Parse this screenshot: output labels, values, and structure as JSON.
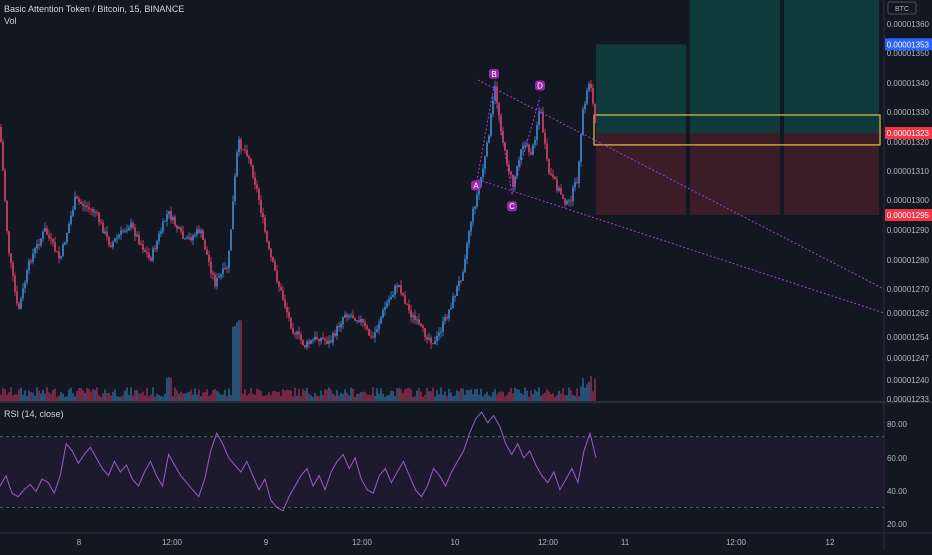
{
  "header": {
    "symbol_line": "Basic Attention Token / Bitcoin, 15, BINANCE",
    "vol_label": "Vol",
    "rsi_label": "RSI (14, close)"
  },
  "chart_data": [
    {
      "type": "candlestick",
      "title": "Basic Attention Token / Bitcoin, 15, BINANCE",
      "currency_badge": "BTC",
      "x_ticks": [
        "8",
        "12:00",
        "9",
        "12:00",
        "10",
        "12:00",
        "11",
        "12:00",
        "12"
      ],
      "y_ticks": [
        "0.00001360",
        "0.00001350",
        "0.00001340",
        "0.00001330",
        "0.00001320",
        "0.00001310",
        "0.00001300",
        "0.00001290",
        "0.00001280",
        "0.00001270",
        "0.00001262",
        "0.00001254",
        "0.00001247",
        "0.00001240",
        "0.00001233"
      ],
      "ylim": [
        1.23e-05,
        1.36e-05
      ],
      "price_labels": [
        {
          "value": 1.353e-05,
          "text": "0.00001353",
          "color": "#2962ff"
        },
        {
          "value": 1.323e-05,
          "text": "0.00001323",
          "color": "#f23645"
        },
        {
          "value": 1.295e-05,
          "text": "0.00001295",
          "color": "#f23645"
        }
      ],
      "candle_path": [
        [
          0,
          1.325e-05
        ],
        [
          8,
          1.285e-05
        ],
        [
          18,
          1.262e-05
        ],
        [
          30,
          1.28e-05
        ],
        [
          45,
          1.29e-05
        ],
        [
          60,
          1.28e-05
        ],
        [
          75,
          1.3e-05
        ],
        [
          95,
          1.296e-05
        ],
        [
          110,
          1.285e-05
        ],
        [
          130,
          1.292e-05
        ],
        [
          150,
          1.28e-05
        ],
        [
          168,
          1.296e-05
        ],
        [
          185,
          1.286e-05
        ],
        [
          200,
          1.29e-05
        ],
        [
          215,
          1.272e-05
        ],
        [
          228,
          1.278e-05
        ],
        [
          238,
          1.32e-05
        ],
        [
          248,
          1.316e-05
        ],
        [
          258,
          1.302e-05
        ],
        [
          268,
          1.284e-05
        ],
        [
          280,
          1.27e-05
        ],
        [
          292,
          1.257e-05
        ],
        [
          305,
          1.251e-05
        ],
        [
          318,
          1.254e-05
        ],
        [
          330,
          1.252e-05
        ],
        [
          345,
          1.262e-05
        ],
        [
          360,
          1.26e-05
        ],
        [
          372,
          1.253e-05
        ],
        [
          385,
          1.264e-05
        ],
        [
          398,
          1.272e-05
        ],
        [
          410,
          1.262e-05
        ],
        [
          422,
          1.256e-05
        ],
        [
          435,
          1.252e-05
        ],
        [
          448,
          1.262e-05
        ],
        [
          462,
          1.275e-05
        ],
        [
          470,
          1.292e-05
        ],
        [
          478,
          1.303e-05
        ],
        [
          486,
          1.316e-05
        ],
        [
          495,
          1.338e-05
        ],
        [
          505,
          1.316e-05
        ],
        [
          513,
          1.305e-05
        ],
        [
          522,
          1.32e-05
        ],
        [
          532,
          1.316e-05
        ],
        [
          540,
          1.332e-05
        ],
        [
          548,
          1.31e-05
        ],
        [
          558,
          1.304e-05
        ],
        [
          568,
          1.298e-05
        ],
        [
          578,
          1.308e-05
        ],
        [
          583,
          1.33e-05
        ],
        [
          590,
          1.342e-05
        ],
        [
          596,
          1.323e-05
        ]
      ],
      "pattern": {
        "type": "harmonic",
        "points": [
          {
            "label": "A",
            "x": 476,
            "value": 1.305e-05
          },
          {
            "label": "B",
            "x": 494,
            "value": 1.339e-05
          },
          {
            "label": "C",
            "x": 512,
            "value": 1.302e-05
          },
          {
            "label": "D",
            "x": 540,
            "value": 1.335e-05
          }
        ]
      },
      "trendlines": [
        {
          "x1": 478,
          "value1": 1.341e-05,
          "x2": 884,
          "value2": 1.27e-05
        },
        {
          "x1": 478,
          "value1": 1.307e-05,
          "x2": 884,
          "value2": 1.262e-05
        }
      ],
      "position": {
        "entry": 1.323e-05,
        "target": 1.353e-05,
        "stop": 1.295e-05,
        "entry_box": [
          1.319e-05,
          1.329e-05
        ]
      }
    },
    {
      "type": "line",
      "title": "RSI (14, close)",
      "y_ticks": [
        "80.00",
        "60.00",
        "40.00",
        "20.00"
      ],
      "ylim": [
        16,
        88
      ],
      "bands": [
        70,
        30
      ],
      "series": [
        {
          "name": "",
          "values": [
            42,
            48,
            38,
            36,
            40,
            43,
            39,
            46,
            44,
            38,
            48,
            66,
            62,
            55,
            60,
            64,
            58,
            52,
            48,
            56,
            50,
            54,
            46,
            42,
            50,
            56,
            48,
            42,
            60,
            54,
            48,
            44,
            40,
            36,
            46,
            62,
            72,
            66,
            58,
            54,
            50,
            56,
            48,
            40,
            46,
            34,
            30,
            28,
            36,
            42,
            48,
            52,
            42,
            48,
            40,
            50,
            56,
            60,
            52,
            58,
            46,
            40,
            38,
            48,
            52,
            44,
            50,
            56,
            48,
            40,
            36,
            42,
            52,
            48,
            42,
            50,
            56,
            62,
            72,
            80,
            84,
            78,
            82,
            76,
            66,
            60,
            66,
            58,
            62,
            54,
            48,
            44,
            50,
            40,
            46,
            52,
            44,
            62,
            72,
            58
          ]
        }
      ]
    }
  ]
}
